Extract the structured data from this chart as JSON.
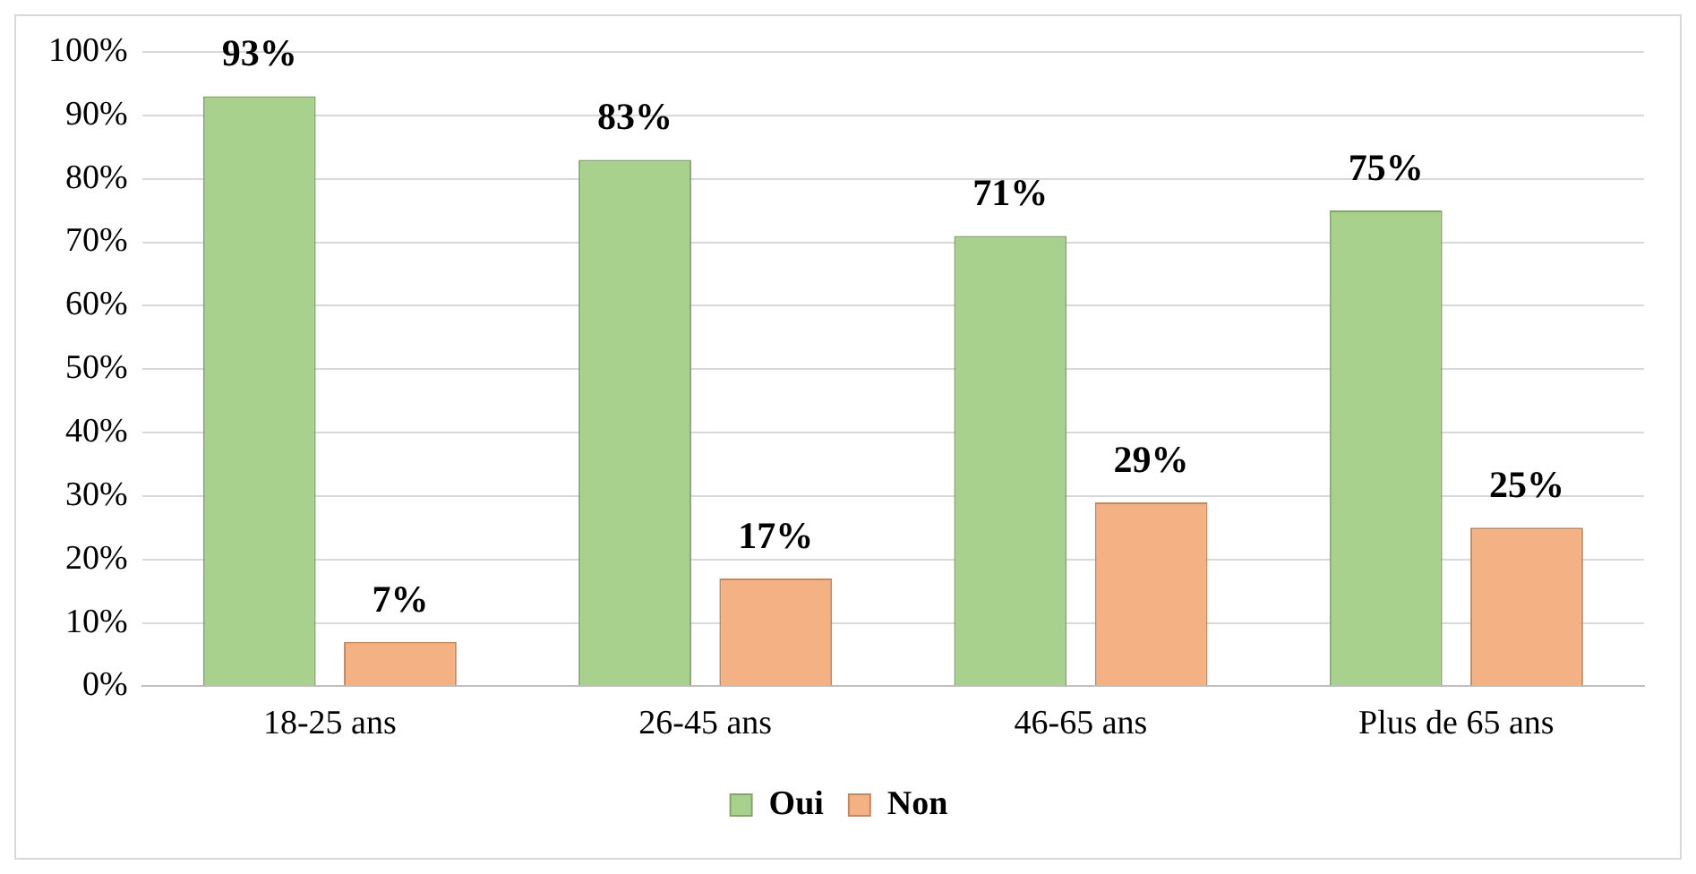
{
  "chart_data": {
    "type": "bar",
    "categories": [
      "18-25 ans",
      "26-45 ans",
      "46-65 ans",
      "Plus de 65 ans"
    ],
    "series": [
      {
        "name": "Oui",
        "color": "#a9d18e",
        "values": [
          93,
          83,
          71,
          75
        ],
        "value_labels": [
          "93%",
          "83%",
          "71%",
          "75%"
        ]
      },
      {
        "name": "Non",
        "color": "#f4b183",
        "values": [
          7,
          17,
          29,
          25
        ],
        "value_labels": [
          "7%",
          "17%",
          "29%",
          "25%"
        ]
      }
    ],
    "ylim": [
      0,
      100
    ],
    "yticks": [
      {
        "value": 0,
        "label": "0%"
      },
      {
        "value": 10,
        "label": "10%"
      },
      {
        "value": 20,
        "label": "20%"
      },
      {
        "value": 30,
        "label": "30%"
      },
      {
        "value": 40,
        "label": "40%"
      },
      {
        "value": 50,
        "label": "50%"
      },
      {
        "value": 60,
        "label": "60%"
      },
      {
        "value": 70,
        "label": "70%"
      },
      {
        "value": 80,
        "label": "80%"
      },
      {
        "value": 90,
        "label": "90%"
      },
      {
        "value": 100,
        "label": "100%"
      }
    ],
    "grid": "y",
    "legend": "bottom"
  }
}
